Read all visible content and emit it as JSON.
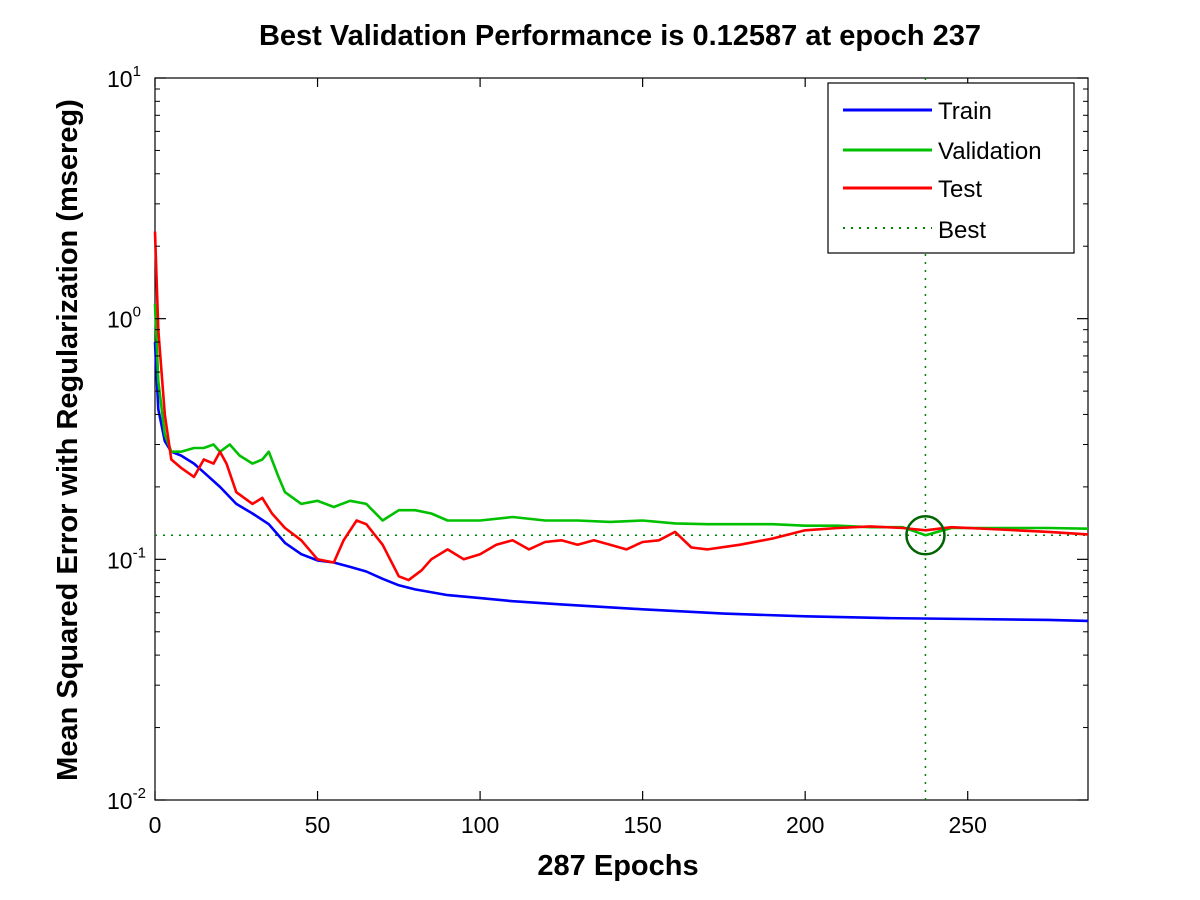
{
  "chart_data": {
    "type": "line",
    "title": "Best Validation Performance is 0.12587 at epoch 237",
    "xlabel": "287 Epochs",
    "ylabel": "Mean Squared Error with Regularization  (msereg)",
    "xlim": [
      0,
      287
    ],
    "ylim": [
      0.01,
      10
    ],
    "yscale": "log",
    "grid": false,
    "legend_position": "top-right",
    "x_ticks": [
      0,
      50,
      100,
      150,
      200,
      250
    ],
    "y_ticks": [
      {
        "value": 0.01,
        "base": "10",
        "exp": "-2"
      },
      {
        "value": 0.1,
        "base": "10",
        "exp": "-1"
      },
      {
        "value": 1,
        "base": "10",
        "exp": "0"
      },
      {
        "value": 10,
        "base": "10",
        "exp": "1"
      }
    ],
    "best": {
      "epoch": 237,
      "value": 0.12587,
      "label": "Best"
    },
    "series": [
      {
        "name": "Train",
        "color": "#0000ff",
        "points": [
          [
            0,
            0.8
          ],
          [
            1,
            0.42
          ],
          [
            3,
            0.31
          ],
          [
            5,
            0.28
          ],
          [
            8,
            0.27
          ],
          [
            12,
            0.25
          ],
          [
            15,
            0.23
          ],
          [
            20,
            0.2
          ],
          [
            25,
            0.17
          ],
          [
            30,
            0.155
          ],
          [
            35,
            0.14
          ],
          [
            40,
            0.117
          ],
          [
            45,
            0.105
          ],
          [
            50,
            0.099
          ],
          [
            55,
            0.097
          ],
          [
            60,
            0.093
          ],
          [
            65,
            0.089
          ],
          [
            70,
            0.083
          ],
          [
            75,
            0.078
          ],
          [
            80,
            0.075
          ],
          [
            90,
            0.071
          ],
          [
            100,
            0.069
          ],
          [
            110,
            0.067
          ],
          [
            125,
            0.065
          ],
          [
            150,
            0.062
          ],
          [
            175,
            0.0595
          ],
          [
            200,
            0.058
          ],
          [
            225,
            0.057
          ],
          [
            250,
            0.0565
          ],
          [
            275,
            0.056
          ],
          [
            287,
            0.0555
          ]
        ]
      },
      {
        "name": "Validation",
        "color": "#00c000",
        "points": [
          [
            0,
            1.15
          ],
          [
            1,
            0.55
          ],
          [
            3,
            0.33
          ],
          [
            5,
            0.28
          ],
          [
            8,
            0.28
          ],
          [
            12,
            0.29
          ],
          [
            15,
            0.29
          ],
          [
            18,
            0.3
          ],
          [
            20,
            0.28
          ],
          [
            23,
            0.3
          ],
          [
            26,
            0.27
          ],
          [
            30,
            0.25
          ],
          [
            33,
            0.26
          ],
          [
            35,
            0.28
          ],
          [
            38,
            0.22
          ],
          [
            40,
            0.19
          ],
          [
            45,
            0.17
          ],
          [
            50,
            0.175
          ],
          [
            55,
            0.165
          ],
          [
            60,
            0.175
          ],
          [
            65,
            0.17
          ],
          [
            70,
            0.145
          ],
          [
            75,
            0.16
          ],
          [
            80,
            0.16
          ],
          [
            85,
            0.155
          ],
          [
            90,
            0.145
          ],
          [
            100,
            0.145
          ],
          [
            110,
            0.15
          ],
          [
            120,
            0.145
          ],
          [
            130,
            0.145
          ],
          [
            140,
            0.143
          ],
          [
            150,
            0.145
          ],
          [
            160,
            0.141
          ],
          [
            170,
            0.14
          ],
          [
            180,
            0.14
          ],
          [
            190,
            0.14
          ],
          [
            200,
            0.138
          ],
          [
            210,
            0.138
          ],
          [
            220,
            0.136
          ],
          [
            230,
            0.136
          ],
          [
            237,
            0.126
          ],
          [
            245,
            0.135
          ],
          [
            260,
            0.135
          ],
          [
            275,
            0.135
          ],
          [
            287,
            0.134
          ]
        ]
      },
      {
        "name": "Test",
        "color": "#ff0000",
        "points": [
          [
            0,
            2.3
          ],
          [
            1,
            0.9
          ],
          [
            3,
            0.4
          ],
          [
            5,
            0.26
          ],
          [
            8,
            0.24
          ],
          [
            12,
            0.22
          ],
          [
            15,
            0.26
          ],
          [
            18,
            0.25
          ],
          [
            20,
            0.28
          ],
          [
            22,
            0.25
          ],
          [
            25,
            0.19
          ],
          [
            30,
            0.17
          ],
          [
            33,
            0.18
          ],
          [
            36,
            0.155
          ],
          [
            40,
            0.135
          ],
          [
            45,
            0.12
          ],
          [
            50,
            0.1
          ],
          [
            55,
            0.097
          ],
          [
            58,
            0.12
          ],
          [
            62,
            0.145
          ],
          [
            65,
            0.14
          ],
          [
            70,
            0.115
          ],
          [
            75,
            0.085
          ],
          [
            78,
            0.082
          ],
          [
            82,
            0.09
          ],
          [
            85,
            0.1
          ],
          [
            90,
            0.11
          ],
          [
            95,
            0.1
          ],
          [
            100,
            0.105
          ],
          [
            105,
            0.115
          ],
          [
            110,
            0.12
          ],
          [
            115,
            0.11
          ],
          [
            120,
            0.118
          ],
          [
            125,
            0.12
          ],
          [
            130,
            0.115
          ],
          [
            135,
            0.12
          ],
          [
            140,
            0.115
          ],
          [
            145,
            0.11
          ],
          [
            150,
            0.118
          ],
          [
            155,
            0.12
          ],
          [
            160,
            0.13
          ],
          [
            165,
            0.112
          ],
          [
            170,
            0.11
          ],
          [
            180,
            0.115
          ],
          [
            190,
            0.122
          ],
          [
            200,
            0.132
          ],
          [
            210,
            0.135
          ],
          [
            220,
            0.137
          ],
          [
            230,
            0.135
          ],
          [
            237,
            0.132
          ],
          [
            245,
            0.136
          ],
          [
            260,
            0.133
          ],
          [
            275,
            0.13
          ],
          [
            287,
            0.127
          ]
        ]
      }
    ]
  }
}
